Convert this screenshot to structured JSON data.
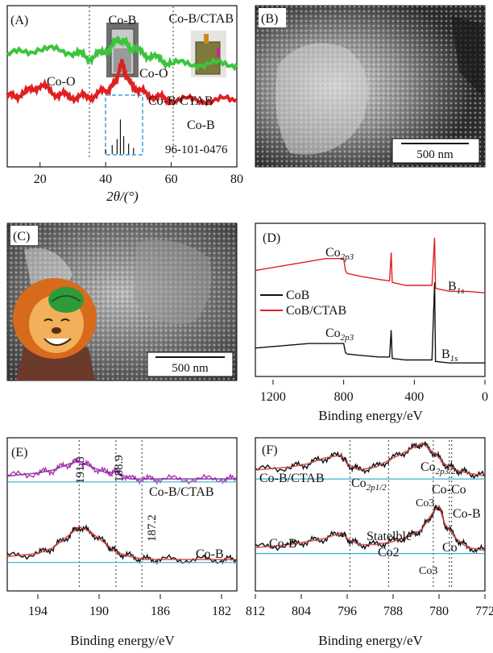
{
  "panels": {
    "A": {
      "tag": "(A)",
      "xlabel": "2θ/(°)",
      "xticks": [
        "20",
        "40",
        "60",
        "80"
      ],
      "labels": {
        "co_o_left": "Co-O",
        "co_b_top": "Co-B",
        "co_o_mid": "Co-O",
        "co_b_ctab_top": "Co-B/CTAB",
        "series_ctab": "Co-B/CTAB",
        "series_cob": "Co-B",
        "ref": "96-101-0476"
      }
    },
    "B": {
      "tag": "(B)",
      "scalebar": "500 nm"
    },
    "C": {
      "tag": "(C)",
      "scalebar": "500 nm"
    },
    "D": {
      "tag": "(D)",
      "xlabel": "Binding energy/eV",
      "xticks": [
        "1200",
        "800",
        "400",
        "0"
      ],
      "legend": [
        "CoB",
        "CoB/CTAB"
      ],
      "peak_co_main": "Co",
      "peak_co_sub": "2p3",
      "peak_b_main": "B",
      "peak_b_sub": "1s"
    },
    "E": {
      "tag": "(E)",
      "xlabel": "Binding energy/eV",
      "xticks": [
        "194",
        "190",
        "186",
        "182"
      ],
      "peaks": [
        "191.3",
        "188.9",
        "187.2"
      ],
      "series": [
        "Co-B/CTAB",
        "Co-B"
      ]
    },
    "F": {
      "tag": "(F)",
      "xlabel": "Binding energy/eV",
      "xticks": [
        "812",
        "804",
        "796",
        "788",
        "780",
        "772"
      ],
      "labels": {
        "cob_ctab": "Co-B/CTAB",
        "co2p12_main": "Co",
        "co2p12_sub": "2p1/2",
        "co2p32_main": "Co",
        "co2p32_sub": "2p3/2",
        "co_co": "Co-Co",
        "co_b_right": "Co-B",
        "co3_top": "Co3",
        "co_b_left": "Co-B",
        "statelble": "Statelble",
        "co2": "Co2",
        "co": "Co",
        "co3_bottom": "Co3"
      }
    }
  },
  "chart_data": [
    {
      "panel": "A",
      "type": "line",
      "xlabel": "2θ/(°)",
      "xlim": [
        10,
        80
      ],
      "series": [
        {
          "name": "Co-B/CTAB",
          "color": "#3cc43c",
          "x": [
            10,
            20,
            30,
            35,
            40,
            44,
            46,
            50,
            55,
            60,
            70,
            80
          ],
          "y": [
            0.68,
            0.72,
            0.7,
            0.66,
            0.7,
            0.78,
            0.76,
            0.7,
            0.66,
            0.62,
            0.62,
            0.62
          ]
        },
        {
          "name": "Co-B",
          "color": "#e02020",
          "x": [
            10,
            15,
            20,
            25,
            30,
            35,
            40,
            42,
            45,
            47,
            50,
            55,
            60,
            70,
            80
          ],
          "y": [
            0.4,
            0.42,
            0.48,
            0.42,
            0.4,
            0.4,
            0.44,
            0.46,
            0.62,
            0.5,
            0.44,
            0.4,
            0.38,
            0.38,
            0.38
          ]
        },
        {
          "name": "96-101-0476",
          "color": "#111111",
          "x": [
            40,
            42,
            43.5,
            44.5,
            45.5,
            47,
            48.5
          ],
          "y": [
            0.05,
            0.08,
            0.12,
            0.25,
            0.14,
            0.09,
            0.06
          ]
        }
      ],
      "vlines": [
        35,
        61
      ]
    },
    {
      "panel": "D",
      "type": "line",
      "xlabel": "Binding energy/eV",
      "xlim": [
        1300,
        0
      ],
      "series": [
        {
          "name": "CoB/CTAB",
          "color": "#e02020",
          "x": [
            1300,
            1200,
            1100,
            1000,
            900,
            800,
            790,
            780,
            700,
            600,
            540,
            531,
            525,
            450,
            300,
            285,
            280,
            200,
            100,
            0
          ],
          "y": [
            0.7,
            0.72,
            0.74,
            0.76,
            0.78,
            0.78,
            0.7,
            0.68,
            0.66,
            0.64,
            0.63,
            0.82,
            0.62,
            0.6,
            0.6,
            0.92,
            0.58,
            0.56,
            0.56,
            0.55
          ]
        },
        {
          "name": "CoB",
          "color": "#111111",
          "x": [
            1300,
            1200,
            1100,
            1000,
            900,
            800,
            790,
            780,
            700,
            600,
            540,
            531,
            525,
            450,
            300,
            285,
            280,
            200,
            100,
            0
          ],
          "y": [
            0.18,
            0.19,
            0.2,
            0.21,
            0.21,
            0.21,
            0.15,
            0.14,
            0.13,
            0.12,
            0.12,
            0.3,
            0.11,
            0.1,
            0.1,
            0.62,
            0.09,
            0.08,
            0.08,
            0.08
          ]
        }
      ]
    },
    {
      "panel": "E",
      "type": "line",
      "xlabel": "Binding energy/eV",
      "xlim": [
        196,
        181
      ],
      "series": [
        {
          "name": "Co-B/CTAB",
          "color": "#b030b0",
          "x": [
            196,
            194,
            193,
            192,
            191.3,
            190.5,
            189.5,
            188.9,
            188,
            187,
            186,
            184,
            182,
            181
          ],
          "y": [
            0.76,
            0.78,
            0.8,
            0.84,
            0.86,
            0.82,
            0.78,
            0.79,
            0.74,
            0.74,
            0.74,
            0.74,
            0.74,
            0.74
          ]
        },
        {
          "name": "Co-B",
          "color": "#111111",
          "x": [
            196,
            194,
            193,
            192,
            191.3,
            190.5,
            189.5,
            188.9,
            188,
            187,
            186,
            184,
            182,
            181
          ],
          "y": [
            0.22,
            0.24,
            0.28,
            0.36,
            0.42,
            0.38,
            0.3,
            0.25,
            0.22,
            0.2,
            0.2,
            0.2,
            0.2,
            0.2
          ]
        }
      ],
      "vlines": [
        191.3,
        188.9,
        187.2
      ]
    },
    {
      "panel": "F",
      "type": "line",
      "xlabel": "Binding energy/eV",
      "xlim": [
        812,
        772
      ],
      "series": [
        {
          "name": "Co-B/CTAB",
          "color": "#111111",
          "x": [
            812,
            806,
            803,
            800,
            797,
            796,
            794,
            791,
            788,
            785,
            783,
            781,
            779,
            777,
            775,
            772
          ],
          "y": [
            0.8,
            0.82,
            0.84,
            0.88,
            0.9,
            0.84,
            0.8,
            0.82,
            0.88,
            0.94,
            0.98,
            0.92,
            0.84,
            0.8,
            0.78,
            0.76
          ]
        },
        {
          "name": "Co-B",
          "color": "#111111",
          "x": [
            812,
            806,
            803,
            800,
            797,
            796,
            794,
            791,
            788,
            785,
            783,
            781,
            780,
            779,
            777,
            775,
            772
          ],
          "y": [
            0.28,
            0.3,
            0.32,
            0.34,
            0.38,
            0.34,
            0.3,
            0.3,
            0.32,
            0.36,
            0.4,
            0.52,
            0.56,
            0.44,
            0.34,
            0.28,
            0.26
          ]
        }
      ],
      "vlines": [
        795.5,
        788.8,
        781,
        778.2,
        777.8
      ]
    }
  ]
}
